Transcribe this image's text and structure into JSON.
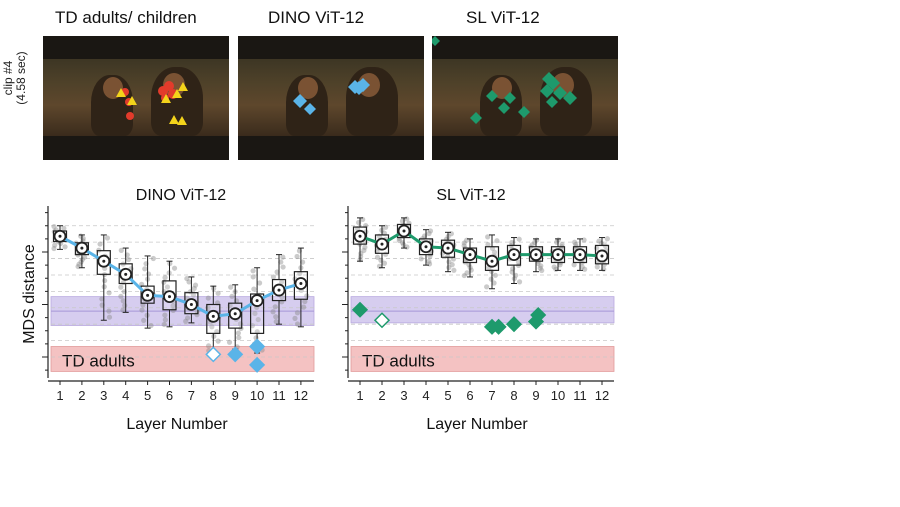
{
  "panel_titles": {
    "frame1": "TD adults/ children",
    "frame2": "DINO ViT-12",
    "frame3": "SL ViT-12"
  },
  "clip_label": {
    "line1": "clip #4",
    "line2": "(4.58 sec)"
  },
  "colors": {
    "dino": "#5ab4e8",
    "sl": "#1e9a6c",
    "td_adults_band": "#f4c2c2",
    "purple_band": "#d6cdef",
    "heat_red": "#e23b2b",
    "heat_yellow": "#f3d31b"
  },
  "icons": {
    "td_adult_marker": "triangle",
    "td_child_marker": "circle",
    "model_marker": "diamond"
  },
  "chart_data": [
    {
      "type": "box",
      "title": "DINO ViT-12",
      "xlabel": "Layer Number",
      "ylabel": "MDS distance",
      "categories": [
        "1",
        "2",
        "3",
        "4",
        "5",
        "6",
        "7",
        "8",
        "9",
        "10",
        "11",
        "12"
      ],
      "median_series": {
        "name": "",
        "values": [
          9.2,
          8.3,
          7.3,
          6.3,
          4.7,
          4.6,
          4.0,
          3.1,
          3.3,
          4.3,
          5.1,
          5.6
        ]
      },
      "boxes": [
        {
          "q1": 8.8,
          "q3": 9.6,
          "min": 8.2,
          "max": 10.0
        },
        {
          "q1": 7.8,
          "q3": 8.7,
          "min": 6.8,
          "max": 9.3
        },
        {
          "q1": 6.3,
          "q3": 8.1,
          "min": 2.8,
          "max": 9.3
        },
        {
          "q1": 5.6,
          "q3": 7.1,
          "min": 3.4,
          "max": 8.3
        },
        {
          "q1": 4.1,
          "q3": 5.4,
          "min": 2.2,
          "max": 7.7
        },
        {
          "q1": 3.6,
          "q3": 5.8,
          "min": 2.3,
          "max": 7.3
        },
        {
          "q1": 3.3,
          "q3": 4.9,
          "min": 2.6,
          "max": 6.1
        },
        {
          "q1": 1.8,
          "q3": 4.0,
          "min": 0.3,
          "max": 5.4
        },
        {
          "q1": 2.2,
          "q3": 4.1,
          "min": 0.6,
          "max": 5.5
        },
        {
          "q1": 1.8,
          "q3": 4.8,
          "min": 0.3,
          "max": 6.8
        },
        {
          "q1": 4.3,
          "q3": 5.9,
          "min": 2.5,
          "max": 7.8
        },
        {
          "q1": 4.4,
          "q3": 6.5,
          "min": 2.3,
          "max": 8.3
        }
      ],
      "model_points": [
        {
          "layer": 8,
          "value": 0.2,
          "filled": false
        },
        {
          "layer": 9,
          "value": 0.2,
          "filled": true
        },
        {
          "layer": 10,
          "value": 0.8,
          "filled": true
        },
        {
          "layer": 10,
          "value": -0.6,
          "filled": true
        }
      ],
      "purple_band": [
        2.4,
        4.6
      ],
      "td_adults_band": [
        -1.1,
        0.8
      ],
      "td_adults_label": "TD adults",
      "ylim": [
        -1.6,
        11.2
      ]
    },
    {
      "type": "box",
      "title": "SL ViT-12",
      "xlabel": "Layer Number",
      "ylabel": "",
      "categories": [
        "1",
        "2",
        "3",
        "4",
        "5",
        "6",
        "7",
        "8",
        "9",
        "10",
        "11",
        "12"
      ],
      "median_series": {
        "name": "",
        "values": [
          9.2,
          8.6,
          9.6,
          8.4,
          8.3,
          7.8,
          7.3,
          7.8,
          7.8,
          7.8,
          7.8,
          7.7
        ]
      },
      "boxes": [
        {
          "q1": 8.6,
          "q3": 9.9,
          "min": 7.3,
          "max": 10.6
        },
        {
          "q1": 7.9,
          "q3": 9.3,
          "min": 6.8,
          "max": 10.0
        },
        {
          "q1": 9.1,
          "q3": 10.1,
          "min": 8.3,
          "max": 10.6
        },
        {
          "q1": 7.8,
          "q3": 9.0,
          "min": 7.0,
          "max": 9.7
        },
        {
          "q1": 7.6,
          "q3": 8.9,
          "min": 6.5,
          "max": 9.5
        },
        {
          "q1": 7.2,
          "q3": 8.3,
          "min": 6.1,
          "max": 9.0
        },
        {
          "q1": 6.6,
          "q3": 8.4,
          "min": 5.2,
          "max": 9.3
        },
        {
          "q1": 7.0,
          "q3": 8.5,
          "min": 5.6,
          "max": 9.1
        },
        {
          "q1": 7.3,
          "q3": 8.4,
          "min": 6.5,
          "max": 9.0
        },
        {
          "q1": 7.2,
          "q3": 8.4,
          "min": 6.6,
          "max": 9.0
        },
        {
          "q1": 7.2,
          "q3": 8.4,
          "min": 6.6,
          "max": 9.0
        },
        {
          "q1": 7.1,
          "q3": 8.5,
          "min": 6.6,
          "max": 9.1
        }
      ],
      "model_points": [
        {
          "layer": 1,
          "value": 3.6,
          "filled": true
        },
        {
          "layer": 2,
          "value": 2.8,
          "filled": false
        },
        {
          "layer": 7,
          "value": 2.3,
          "filled": true
        },
        {
          "layer": 7.3,
          "value": 2.3,
          "filled": true
        },
        {
          "layer": 8,
          "value": 2.5,
          "filled": true
        },
        {
          "layer": 9,
          "value": 2.7,
          "filled": true
        },
        {
          "layer": 9.1,
          "value": 3.2,
          "filled": true
        }
      ],
      "purple_band": [
        2.6,
        4.6
      ],
      "td_adults_band": [
        -1.1,
        0.8
      ],
      "td_adults_label": "TD adults",
      "ylim": [
        -1.6,
        11.2
      ]
    }
  ]
}
